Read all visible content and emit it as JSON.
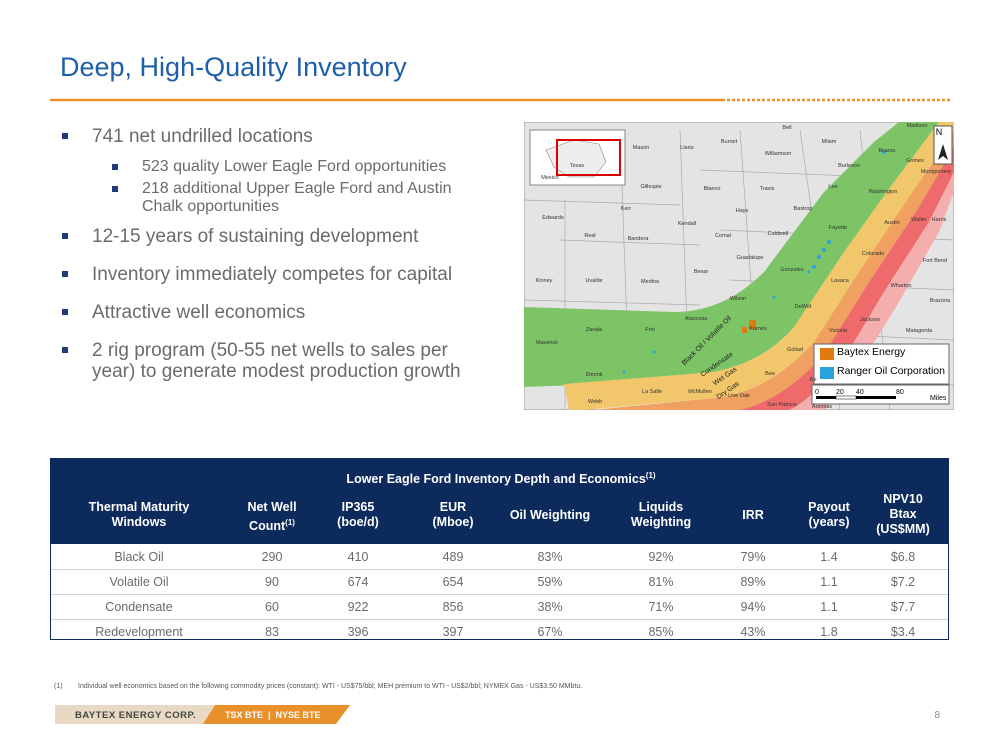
{
  "header": {
    "title": "Deep, High-Quality Inventory"
  },
  "bullets": [
    {
      "level": 1,
      "text": "741 net undrilled locations"
    },
    {
      "level": 2,
      "text": "523 quality Lower Eagle Ford opportunities"
    },
    {
      "level": 2,
      "text": "218 additional Upper Eagle Ford and Austin Chalk opportunities"
    },
    {
      "level": 1,
      "text": "12-15 years of sustaining development"
    },
    {
      "level": 1,
      "text": "Inventory immediately competes for capital"
    },
    {
      "level": 1,
      "text": "Attractive well economics"
    },
    {
      "level": 1,
      "text": "2 rig program (50-55 net wells to sales per year) to generate modest production growth"
    }
  ],
  "map": {
    "labels": [
      "Madison",
      "Bell",
      "Milam",
      "Burnet",
      "Llano",
      "Mason",
      "Williamson",
      "Brazos",
      "Burleson",
      "Grimes",
      "Montgomery",
      "Gillespie",
      "Blanco",
      "Travis",
      "Lee",
      "Washington",
      "Edwards",
      "Kerr",
      "Hays",
      "Bastrop",
      "Austin",
      "Waller",
      "Harris",
      "Real",
      "Kendall",
      "Comal",
      "Caldwell",
      "Fayette",
      "Bandera",
      "Guadalupe",
      "Colorado",
      "Fort Bend",
      "Kinney",
      "Uvalde",
      "Medina",
      "Bexar",
      "Gonzales",
      "Lavaca",
      "Wharton",
      "Wilson",
      "DeWitt",
      "Brazoria",
      "Atascosa",
      "Karnes",
      "Jackson",
      "Zavala",
      "Frio",
      "Victoria",
      "Matagorda",
      "Maverick",
      "Goliad",
      "Dimmit",
      "La Salle",
      "McMullen",
      "Live Oak",
      "Bee",
      "Webb",
      "San Patricio",
      "Aransas",
      "Re",
      "Texas",
      "Mexico"
    ],
    "trend_labels": [
      "Black Oil / Volatile Oil",
      "Condensate",
      "Wet Gas",
      "Dry Gas"
    ],
    "legend": [
      "Baytex Energy",
      "Ranger Oil Corporation"
    ],
    "scale": [
      "0",
      "20",
      "40",
      "80",
      "Miles"
    ],
    "north": "N"
  },
  "table": {
    "title": "Lower Eagle Ford Inventory Depth and Economics",
    "title_note": "(1)",
    "headers": [
      {
        "lines": [
          "Thermal Maturity",
          "Windows"
        ]
      },
      {
        "lines": [
          "Net Well",
          "Count"
        ],
        "note": "(1)"
      },
      {
        "lines": [
          "IP365",
          "(boe/d)"
        ]
      },
      {
        "lines": [
          "EUR",
          "(Mboe)"
        ]
      },
      {
        "lines": [
          "Oil Weighting"
        ]
      },
      {
        "lines": [
          "Liquids",
          "Weighting"
        ]
      },
      {
        "lines": [
          "IRR"
        ]
      },
      {
        "lines": [
          "Payout",
          "(years)"
        ]
      },
      {
        "lines": [
          "NPV10",
          "Btax",
          "(US$MM)"
        ]
      }
    ],
    "rows": [
      [
        "Black Oil",
        "290",
        "410",
        "489",
        "83%",
        "92%",
        "79%",
        "1.4",
        "$6.8"
      ],
      [
        "Volatile Oil",
        "90",
        "674",
        "654",
        "59%",
        "81%",
        "89%",
        "1.1",
        "$7.2"
      ],
      [
        "Condensate",
        "60",
        "922",
        "856",
        "38%",
        "71%",
        "94%",
        "1.1",
        "$7.7"
      ],
      [
        "Redevelopment",
        "83",
        "396",
        "397",
        "67%",
        "85%",
        "43%",
        "1.8",
        "$3.4"
      ]
    ]
  },
  "footnote": {
    "marker": "(1)",
    "text": "Individual well economics based on the following commodity prices (constant):  WTI - US$75/bbl; MEH premium to WTI - US$2/bbl; NYMEX Gas - US$3.50 MMbtu."
  },
  "footer": {
    "company": "BAYTEX ENERGY CORP.",
    "tickers": "TSX BTE  |  NYSE BTE",
    "page": "8"
  }
}
